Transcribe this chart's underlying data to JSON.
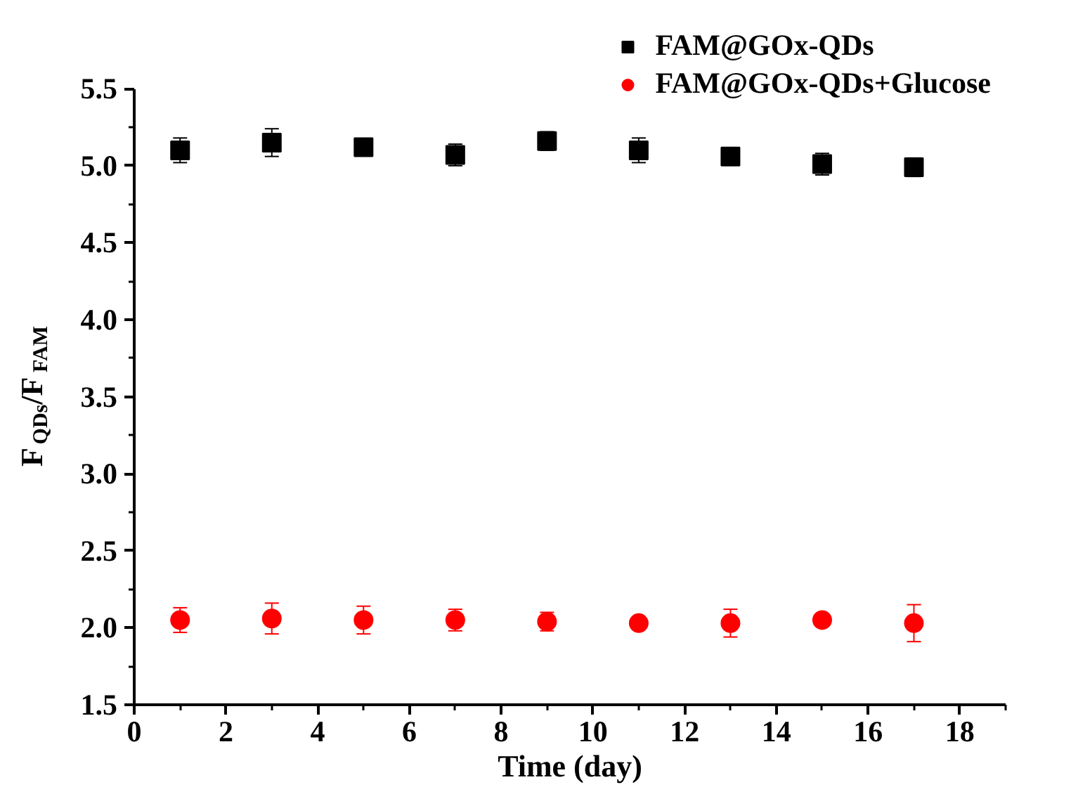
{
  "chart_data": {
    "type": "scatter",
    "xlabel": "Time (day)",
    "ylabel": "F$_{QDs}$/F$_{FAM}$",
    "x": [
      1,
      3,
      5,
      7,
      9,
      11,
      13,
      15,
      17
    ],
    "series": [
      {
        "name": "FAM@GOx-QDs",
        "color": "#000000",
        "marker": "square",
        "values": [
          5.1,
          5.15,
          5.12,
          5.07,
          5.16,
          5.1,
          5.06,
          5.01,
          4.99
        ],
        "errors": [
          0.08,
          0.09,
          0.05,
          0.07,
          0.06,
          0.08,
          0.05,
          0.07,
          0.06
        ]
      },
      {
        "name": "FAM@GOx-QDs+Glucose",
        "color": "#ff0000",
        "marker": "circle",
        "values": [
          2.05,
          2.06,
          2.05,
          2.05,
          2.04,
          2.03,
          2.03,
          2.05,
          2.03
        ],
        "errors": [
          0.08,
          0.1,
          0.09,
          0.07,
          0.06,
          null,
          0.09,
          null,
          0.12
        ]
      }
    ],
    "xlim": [
      0,
      19
    ],
    "ylim": [
      1.5,
      5.5
    ],
    "xticks": [
      0,
      2,
      4,
      6,
      8,
      10,
      12,
      14,
      16,
      18
    ],
    "yticks": [
      {
        "value": 1.5,
        "label": "1.5"
      },
      {
        "value": 2.0,
        "label": "2.0"
      },
      {
        "value": 2.5,
        "label": "2.5"
      },
      {
        "value": 3.0,
        "label": "3.0"
      },
      {
        "value": 3.5,
        "label": "3.5"
      },
      {
        "value": 4.0,
        "label": "4.0"
      },
      {
        "value": 4.5,
        "label": "4.5"
      },
      {
        "value": 5.0,
        "label": "5.0"
      },
      {
        "value": 5.5,
        "label": "5.5"
      }
    ],
    "grid": false,
    "legend": "top right"
  }
}
